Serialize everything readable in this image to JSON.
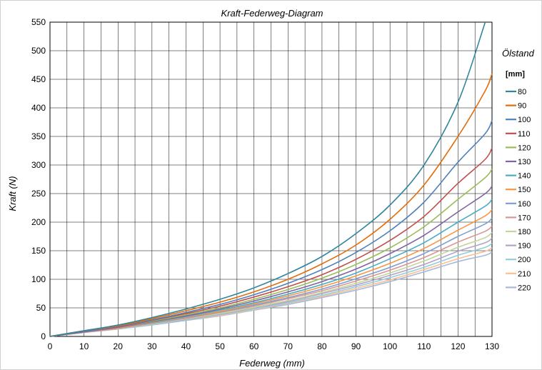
{
  "chart_data": {
    "type": "line",
    "title": "Kraft-Federweg-Diagram",
    "xlabel": "Federweg (mm)",
    "ylabel": "Kraft (N)",
    "xlim": [
      0,
      130
    ],
    "ylim": [
      0,
      550
    ],
    "x_ticks": [
      0,
      10,
      20,
      30,
      40,
      50,
      60,
      70,
      80,
      90,
      100,
      110,
      120,
      130
    ],
    "y_ticks": [
      0,
      50,
      100,
      150,
      200,
      250,
      300,
      350,
      400,
      450,
      500,
      550
    ],
    "x_tick_labels": [
      "0",
      "10",
      "20",
      "30",
      "40",
      "50",
      "60",
      "70",
      "80",
      "90",
      "100",
      "110",
      "120",
      "130"
    ],
    "y_tick_labels": [
      "0",
      "50",
      "100",
      "150",
      "200",
      "250",
      "300",
      "350",
      "400",
      "450",
      "500",
      "550"
    ],
    "grid": true,
    "legend_placement": "right",
    "legend_title": "Ölstand",
    "legend_unit": "[mm]",
    "x": [
      0,
      10,
      20,
      30,
      40,
      50,
      60,
      70,
      80,
      90,
      100,
      110,
      120,
      128,
      130
    ],
    "series": [
      {
        "name": "80",
        "color": "#31859c",
        "values": [
          0,
          10,
          20,
          33,
          48,
          65,
          85,
          110,
          140,
          180,
          230,
          300,
          410,
          550,
          null
        ]
      },
      {
        "name": "90",
        "color": "#e36c09",
        "values": [
          0,
          10,
          19,
          31,
          45,
          60,
          78,
          100,
          127,
          160,
          205,
          265,
          350,
          430,
          460
        ]
      },
      {
        "name": "100",
        "color": "#4f81bd",
        "values": [
          0,
          9,
          18,
          29,
          42,
          56,
          73,
          93,
          117,
          147,
          185,
          235,
          305,
          355,
          378
        ]
      },
      {
        "name": "110",
        "color": "#c0504d",
        "values": [
          0,
          9,
          17,
          28,
          40,
          53,
          69,
          87,
          108,
          135,
          168,
          210,
          268,
          310,
          330
        ]
      },
      {
        "name": "120",
        "color": "#9bbb59",
        "values": [
          0,
          9,
          17,
          27,
          38,
          50,
          65,
          82,
          102,
          126,
          155,
          192,
          240,
          278,
          293
        ]
      },
      {
        "name": "130",
        "color": "#8064a2",
        "values": [
          0,
          8,
          16,
          26,
          36,
          48,
          62,
          78,
          96,
          118,
          145,
          177,
          218,
          250,
          263
        ]
      },
      {
        "name": "140",
        "color": "#4bacc6",
        "values": [
          0,
          8,
          16,
          25,
          35,
          46,
          59,
          74,
          91,
          111,
          136,
          164,
          200,
          228,
          240
        ]
      },
      {
        "name": "150",
        "color": "#f79646",
        "values": [
          0,
          8,
          15,
          24,
          34,
          44,
          57,
          71,
          87,
          106,
          128,
          154,
          186,
          211,
          222
        ]
      },
      {
        "name": "160",
        "color": "#7f9ed0",
        "values": [
          0,
          8,
          15,
          23,
          33,
          43,
          55,
          68,
          83,
          101,
          121,
          145,
          175,
          197,
          207
        ]
      },
      {
        "name": "170",
        "color": "#d99694",
        "values": [
          0,
          7,
          14,
          23,
          32,
          42,
          53,
          66,
          80,
          97,
          116,
          138,
          165,
          184,
          193
        ]
      },
      {
        "name": "180",
        "color": "#c3d69b",
        "values": [
          0,
          7,
          14,
          22,
          31,
          40,
          51,
          63,
          77,
          93,
          111,
          132,
          156,
          173,
          182
        ]
      },
      {
        "name": "190",
        "color": "#b3a2c7",
        "values": [
          0,
          7,
          14,
          22,
          30,
          39,
          50,
          61,
          75,
          90,
          107,
          126,
          149,
          164,
          172
        ]
      },
      {
        "name": "200",
        "color": "#93cddd",
        "values": [
          0,
          7,
          13,
          21,
          29,
          38,
          48,
          59,
          72,
          87,
          103,
          121,
          142,
          156,
          163
        ]
      },
      {
        "name": "210",
        "color": "#fac090",
        "values": [
          0,
          7,
          13,
          21,
          29,
          37,
          47,
          58,
          70,
          84,
          99,
          117,
          136,
          149,
          155
        ]
      },
      {
        "name": "220",
        "color": "#a6b9dc",
        "values": [
          0,
          7,
          13,
          20,
          28,
          36,
          46,
          56,
          68,
          81,
          96,
          113,
          131,
          142,
          148
        ]
      }
    ]
  }
}
